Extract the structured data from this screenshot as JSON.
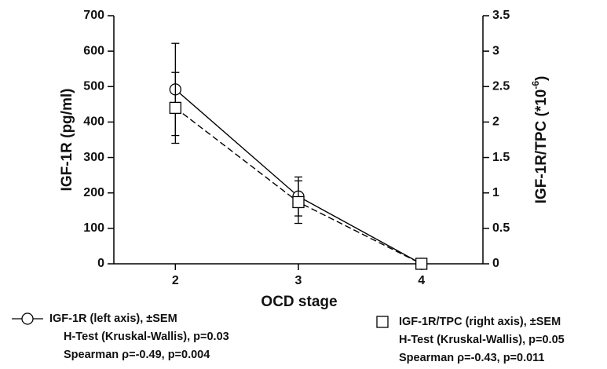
{
  "chart_data": {
    "type": "line",
    "x": [
      2,
      3,
      4
    ],
    "xlim": [
      1.5,
      4.5
    ],
    "xticks": [
      2,
      3,
      4
    ],
    "xlabel": "OCD stage",
    "ylabel": "IGF-1R (pg/ml)",
    "ylim": [
      0,
      700
    ],
    "yticks": [
      0,
      100,
      200,
      300,
      400,
      500,
      600,
      700
    ],
    "y2label": [
      "IGF-1R/TPC (*10",
      "-6",
      ")"
    ],
    "y2lim": [
      0,
      3.5
    ],
    "y2ticks": [
      0,
      0.5,
      1,
      1.5,
      2,
      2.5,
      3,
      3.5
    ],
    "series": [
      {
        "name": "IGF-1R (left axis), ±SEM",
        "notes": [
          "H-Test (Kruskal-Wallis), p=0.03",
          "Spearman ρ=-0.49, p=0.004"
        ],
        "marker": "circle",
        "dash": "solid",
        "color": "#000000",
        "values": [
          492,
          190,
          0
        ],
        "errors": [
          130,
          55,
          0
        ]
      },
      {
        "name": "IGF-1R/TPC (right axis), ±SEM",
        "notes": [
          "H-Test (Kruskal-Wallis), p=0.05",
          "Spearman ρ=-0.43, p=0.011"
        ],
        "marker": "square",
        "dash": "dashed",
        "color": "#000000",
        "axis": "y2",
        "values": [
          2.2,
          0.87,
          0
        ],
        "errors": [
          0.5,
          0.3,
          0
        ]
      }
    ]
  }
}
